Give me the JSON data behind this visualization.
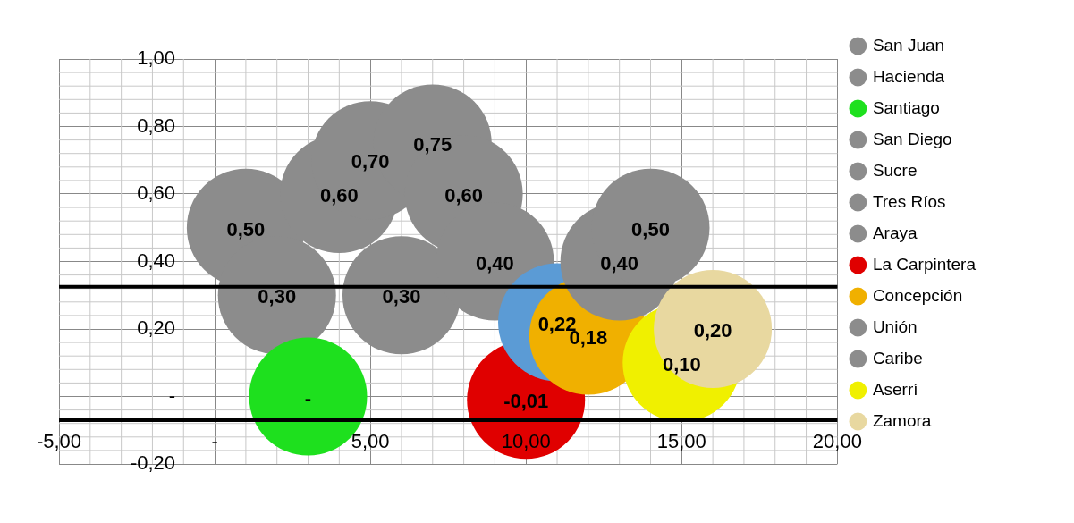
{
  "chart_data": {
    "type": "bubble",
    "xlim": [
      -5,
      20
    ],
    "xticks": [
      {
        "value": -5,
        "label": "-5,00"
      },
      {
        "value": 0,
        "label": "-"
      },
      {
        "value": 5,
        "label": "5,00"
      },
      {
        "value": 10,
        "label": "10,00"
      },
      {
        "value": 15,
        "label": "15,00"
      },
      {
        "value": 20,
        "label": "20,00"
      }
    ],
    "ylim": [
      -0.2,
      1
    ],
    "yticks": [
      {
        "value": -0.2,
        "label": "-0,20"
      },
      {
        "value": 0,
        "label": "-"
      },
      {
        "value": 0.2,
        "label": "0,20"
      },
      {
        "value": 0.4,
        "label": "0,40"
      },
      {
        "value": 0.6,
        "label": "0,60"
      },
      {
        "value": 0.8,
        "label": "0,80"
      },
      {
        "value": 1,
        "label": "1,00"
      }
    ],
    "grid": true,
    "legend": "right",
    "ref_lines": [
      {
        "axis": "y",
        "value": 0.325,
        "color": "#000000"
      },
      {
        "axis": "y",
        "value": -0.07,
        "color": "#000000"
      }
    ],
    "series": [
      {
        "name": "San Juan",
        "color": "#8c8c8c",
        "x": [
          1
        ],
        "values": [
          0.5
        ],
        "sizes": [
          1
        ],
        "value_labels": [
          "0,50"
        ]
      },
      {
        "name": "Hacienda",
        "color": "#8c8c8c",
        "x": [
          2
        ],
        "values": [
          0.3
        ],
        "sizes": [
          1
        ],
        "value_labels": [
          "0,30"
        ]
      },
      {
        "name": "Santiago",
        "color": "#1ee01e",
        "x": [
          3
        ],
        "values": [
          0
        ],
        "sizes": [
          1
        ],
        "value_labels": [
          "-"
        ]
      },
      {
        "color": "#8c8c8c",
        "x": [
          4
        ],
        "values": [
          0.6
        ],
        "sizes": [
          1
        ],
        "value_labels": [
          "0,60"
        ]
      },
      {
        "color": "#8c8c8c",
        "x": [
          5
        ],
        "values": [
          0.7
        ],
        "sizes": [
          1
        ],
        "value_labels": [
          "0,70"
        ]
      },
      {
        "name": "San Diego",
        "color": "#8c8c8c",
        "x": [
          6
        ],
        "values": [
          0.3
        ],
        "sizes": [
          1
        ],
        "value_labels": [
          "0,30"
        ]
      },
      {
        "name": "Sucre",
        "color": "#8c8c8c",
        "x": [
          7
        ],
        "values": [
          0.75
        ],
        "sizes": [
          1
        ],
        "value_labels": [
          "0,75"
        ]
      },
      {
        "name": "Tres Ríos",
        "color": "#8c8c8c",
        "x": [
          8
        ],
        "values": [
          0.6
        ],
        "sizes": [
          1
        ],
        "value_labels": [
          "0,60"
        ]
      },
      {
        "name": "Araya",
        "color": "#8c8c8c",
        "x": [
          9
        ],
        "values": [
          0.4
        ],
        "sizes": [
          1
        ],
        "value_labels": [
          "0,40"
        ]
      },
      {
        "name": "La Carpintera",
        "color": "#e00000",
        "x": [
          10
        ],
        "values": [
          -0.01
        ],
        "sizes": [
          1
        ],
        "value_labels": [
          "-0,01"
        ]
      },
      {
        "color": "#5b9bd5",
        "x": [
          11
        ],
        "values": [
          0.22
        ],
        "sizes": [
          1
        ],
        "value_labels": [
          "0,22"
        ]
      },
      {
        "name": "Concepción",
        "color": "#f0b000",
        "x": [
          12
        ],
        "values": [
          0.18
        ],
        "sizes": [
          1
        ],
        "value_labels": [
          "0,18"
        ]
      },
      {
        "name": "Unión",
        "color": "#8c8c8c",
        "x": [
          13
        ],
        "values": [
          0.4
        ],
        "sizes": [
          1
        ],
        "value_labels": [
          "0,40"
        ]
      },
      {
        "name": "Caribe",
        "color": "#8c8c8c",
        "x": [
          14
        ],
        "values": [
          0.5
        ],
        "sizes": [
          1
        ],
        "value_labels": [
          "0,50"
        ]
      },
      {
        "name": "Aserrí",
        "color": "#f0f000",
        "x": [
          15
        ],
        "values": [
          0.1
        ],
        "sizes": [
          1
        ],
        "value_labels": [
          "0,10"
        ]
      },
      {
        "name": "Zamora",
        "color": "#e8d8a0",
        "x": [
          16
        ],
        "values": [
          0.2
        ],
        "sizes": [
          1
        ],
        "value_labels": [
          "0,20"
        ]
      }
    ]
  }
}
